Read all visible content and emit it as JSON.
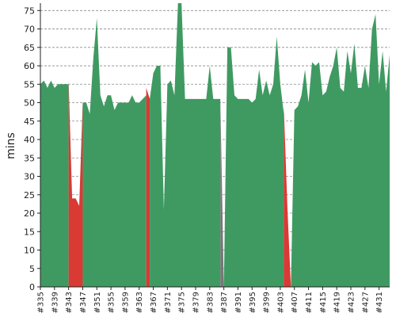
{
  "chart_data": {
    "type": "area",
    "ylabel": "mins",
    "ylim": [
      0,
      77
    ],
    "grid": true,
    "y_ticks": [
      0,
      5,
      10,
      15,
      20,
      25,
      30,
      35,
      40,
      45,
      50,
      55,
      60,
      65,
      70,
      75
    ],
    "x_ticks": [
      "#335",
      "#339",
      "#343",
      "#347",
      "#351",
      "#355",
      "#359",
      "#363",
      "#367",
      "#371",
      "#375",
      "#379",
      "#383",
      "#387",
      "#391",
      "#395",
      "#399",
      "#403",
      "#407",
      "#411",
      "#415",
      "#419",
      "#423",
      "#427",
      "#431"
    ],
    "x_range": [
      335,
      434
    ],
    "colors": {
      "success": "#3f9a62",
      "failure": "#d93a34",
      "aborted": "#777777"
    },
    "series": [
      {
        "status": "success",
        "x": [
          335,
          336,
          337,
          338,
          339,
          340,
          341,
          342,
          343
        ],
        "values": [
          55,
          56,
          54,
          56,
          54,
          55,
          55,
          55,
          55
        ]
      },
      {
        "status": "failure",
        "x": [
          343,
          344,
          345,
          346,
          347
        ],
        "values": [
          56,
          24,
          24,
          22,
          50
        ]
      },
      {
        "status": "success",
        "x": [
          347,
          348,
          349,
          350,
          351,
          352,
          353,
          354,
          355,
          356,
          357,
          358,
          359,
          360,
          361,
          362,
          363,
          364,
          365
        ],
        "values": [
          50,
          50,
          47,
          62,
          73,
          52,
          49,
          52,
          52,
          48,
          50,
          50,
          50,
          50,
          52,
          50,
          50,
          51,
          52
        ]
      },
      {
        "status": "failure",
        "x": [
          365,
          366
        ],
        "values": [
          54,
          51
        ]
      },
      {
        "status": "success",
        "x": [
          366,
          367,
          368,
          369,
          370,
          371,
          372,
          373,
          374,
          375,
          376,
          377,
          378,
          379,
          380,
          381,
          382,
          383,
          384,
          385,
          386
        ],
        "values": [
          51,
          58,
          60,
          60,
          21,
          55,
          56,
          52,
          78,
          78,
          51,
          51,
          51,
          51,
          51,
          51,
          51,
          60,
          51,
          51,
          51
        ]
      },
      {
        "status": "aborted",
        "x": [
          386,
          387
        ],
        "values": [
          51,
          0
        ]
      },
      {
        "status": "success",
        "x": [
          387,
          388,
          389,
          390,
          391,
          392,
          393,
          394,
          395,
          396,
          397,
          398,
          399,
          400,
          401,
          402,
          403,
          404
        ],
        "values": [
          0,
          65,
          65,
          52,
          51,
          51,
          51,
          51,
          50,
          51,
          59,
          52,
          56,
          52,
          55,
          68,
          55,
          47
        ]
      },
      {
        "status": "failure",
        "x": [
          404,
          405,
          406
        ],
        "values": [
          49,
          22,
          0
        ]
      },
      {
        "status": "success",
        "x": [
          406,
          407,
          408,
          409,
          410,
          411,
          412,
          413,
          414,
          415,
          416,
          417,
          418,
          419,
          420,
          421,
          422,
          423,
          424,
          425,
          426,
          427,
          428,
          429,
          430,
          431,
          432,
          433,
          434
        ],
        "values": [
          0,
          48,
          49,
          52,
          59,
          50,
          61,
          60,
          61,
          52,
          53,
          57,
          60,
          65,
          54,
          53,
          64,
          58,
          66,
          54,
          54,
          60,
          54,
          70,
          74,
          55,
          64,
          53,
          63
        ]
      }
    ]
  }
}
